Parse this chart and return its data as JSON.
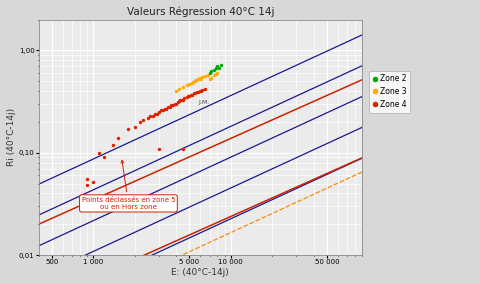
{
  "title": "Valeurs Régression 40°C 14j",
  "xlabel": "E: (40°C-14j)",
  "ylabel": "Ri (40°C-14j)",
  "xmin": 400,
  "xmax": 90000,
  "ymin": 0.01,
  "ymax": 2.0,
  "bg_color": "#ebebeb",
  "grid_color": "#ffffff",
  "blue_lines": [
    {
      "a": 0.0012,
      "b": 0.62
    },
    {
      "a": 0.0006,
      "b": 0.62
    },
    {
      "a": 0.0003,
      "b": 0.62
    },
    {
      "a": 0.00015,
      "b": 0.62
    },
    {
      "a": 7.5e-05,
      "b": 0.62
    }
  ],
  "red_lines": [
    {
      "a": 0.00055,
      "b": 0.6
    },
    {
      "a": 9.5e-05,
      "b": 0.6
    }
  ],
  "orange_dashed_line": {
    "a": 5.5e-05,
    "b": 0.62
  },
  "zone2_points": [
    [
      7000,
      0.6
    ],
    [
      7200,
      0.63
    ],
    [
      7500,
      0.65
    ],
    [
      7800,
      0.67
    ],
    [
      8000,
      0.7
    ],
    [
      8200,
      0.68
    ],
    [
      8500,
      0.72
    ]
  ],
  "zone3_points": [
    [
      4000,
      0.4
    ],
    [
      4200,
      0.42
    ],
    [
      4500,
      0.44
    ],
    [
      4800,
      0.46
    ],
    [
      5000,
      0.47
    ],
    [
      5200,
      0.48
    ],
    [
      5500,
      0.5
    ],
    [
      5800,
      0.52
    ],
    [
      6000,
      0.54
    ],
    [
      6200,
      0.55
    ],
    [
      6500,
      0.56
    ],
    [
      6800,
      0.57
    ],
    [
      7000,
      0.52
    ],
    [
      7200,
      0.54
    ],
    [
      7500,
      0.57
    ],
    [
      7800,
      0.59
    ],
    [
      8000,
      0.6
    ],
    [
      5300,
      0.49
    ],
    [
      5600,
      0.51
    ],
    [
      6100,
      0.53
    ]
  ],
  "zone4_points": [
    [
      900,
      0.055
    ],
    [
      1000,
      0.052
    ],
    [
      1100,
      0.1
    ],
    [
      2000,
      0.18
    ],
    [
      2200,
      0.2
    ],
    [
      2500,
      0.22
    ],
    [
      2800,
      0.24
    ],
    [
      3000,
      0.25
    ],
    [
      3200,
      0.26
    ],
    [
      3400,
      0.27
    ],
    [
      3500,
      0.28
    ],
    [
      3800,
      0.29
    ],
    [
      4000,
      0.3
    ],
    [
      4200,
      0.32
    ],
    [
      4500,
      0.33
    ],
    [
      4800,
      0.35
    ],
    [
      5000,
      0.36
    ],
    [
      5200,
      0.37
    ],
    [
      5500,
      0.38
    ],
    [
      5800,
      0.39
    ],
    [
      6000,
      0.4
    ],
    [
      6200,
      0.41
    ],
    [
      6500,
      0.42
    ],
    [
      2600,
      0.23
    ],
    [
      2900,
      0.24
    ],
    [
      3100,
      0.26
    ],
    [
      3300,
      0.27
    ],
    [
      3600,
      0.28
    ],
    [
      3900,
      0.3
    ],
    [
      4100,
      0.31
    ],
    [
      4300,
      0.33
    ],
    [
      4600,
      0.34
    ],
    [
      4900,
      0.36
    ],
    [
      5100,
      0.37
    ],
    [
      5400,
      0.38
    ],
    [
      5700,
      0.39
    ],
    [
      6100,
      0.4
    ],
    [
      3700,
      0.29
    ],
    [
      4400,
      0.33
    ],
    [
      2300,
      0.21
    ],
    [
      2700,
      0.23
    ],
    [
      1500,
      0.14
    ],
    [
      1800,
      0.17
    ],
    [
      900,
      0.048
    ],
    [
      1200,
      0.09
    ],
    [
      1400,
      0.12
    ],
    [
      3000,
      0.11
    ],
    [
      4500,
      0.11
    ]
  ],
  "annotation_text": "Points déclassés en zone 5\nou en Hors zone",
  "zone2_color": "#00aa00",
  "zone3_color": "#ffaa00",
  "zone4_color": "#dd2200",
  "blue_line_color": "#1a1a8c",
  "red_line_color": "#cc2200",
  "orange_dash_color": "#ff8800",
  "fig_facecolor": "#d8d8d8"
}
